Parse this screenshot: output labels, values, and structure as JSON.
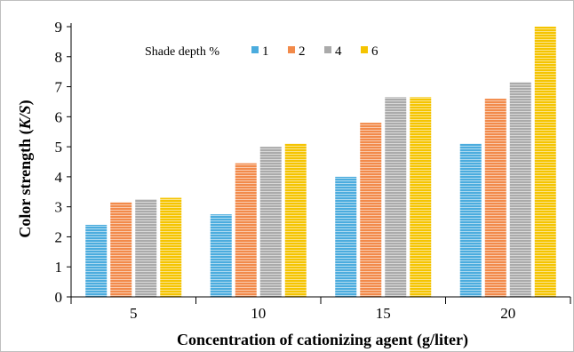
{
  "chart_data": {
    "type": "bar",
    "title": "",
    "xlabel": "Concentration of cationizing agent (g/liter)",
    "ylabel_prefix": "Color strength (",
    "ylabel_var": "K/S",
    "ylabel_suffix": ")",
    "categories": [
      "5",
      "10",
      "15",
      "20"
    ],
    "ylim": [
      0,
      9
    ],
    "yticks": [
      0,
      1,
      2,
      3,
      4,
      5,
      6,
      7,
      8,
      9
    ],
    "legend_title": "Shade depth %",
    "legend_position": "top-left",
    "grid": false,
    "series": [
      {
        "name": "1",
        "color": "#4bacde",
        "values": [
          2.4,
          2.75,
          4.0,
          5.1
        ]
      },
      {
        "name": "2",
        "color": "#f28a4a",
        "values": [
          3.15,
          4.45,
          5.8,
          6.6
        ]
      },
      {
        "name": "4",
        "color": "#aaaaaa",
        "values": [
          3.25,
          5.0,
          6.65,
          7.15
        ]
      },
      {
        "name": "6",
        "color": "#f5c400",
        "values": [
          3.3,
          5.1,
          6.65,
          9.0
        ]
      }
    ]
  }
}
